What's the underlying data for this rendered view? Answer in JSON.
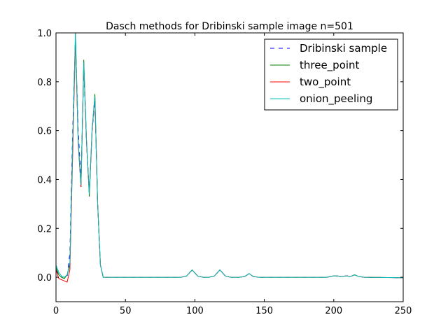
{
  "chart_data": {
    "type": "line",
    "title": "Dasch methods for Dribinski sample image n=501",
    "x": [
      0,
      2,
      4,
      6,
      8,
      10,
      12,
      14,
      16,
      18,
      20,
      22,
      24,
      26,
      28,
      30,
      32,
      34,
      36,
      50,
      90,
      94,
      98,
      102,
      106,
      110,
      114,
      118,
      122,
      126,
      132,
      136,
      139,
      142,
      146,
      150,
      195,
      200,
      203,
      206,
      209,
      212,
      215,
      218,
      222,
      250
    ],
    "series": [
      {
        "name": "Dribinski sample",
        "color": "#0000ff",
        "dash": true,
        "values": [
          0.03,
          0.01,
          0.0,
          -0.005,
          0.0,
          0.1,
          0.6,
          0.98,
          0.6,
          0.4,
          0.85,
          0.55,
          0.35,
          0.6,
          0.72,
          0.3,
          0.05,
          0.0,
          0.0,
          0,
          0,
          0.005,
          0.03,
          0.005,
          0,
          0,
          0.005,
          0.03,
          0.005,
          0,
          0,
          0.003,
          0.015,
          0.003,
          0,
          0,
          0,
          0.006,
          0.005,
          0.003,
          0.006,
          0.003,
          0.01,
          0.003,
          0,
          -0.002
        ]
      },
      {
        "name": "three_point",
        "color": "#008000",
        "dash": false,
        "values": [
          0.04,
          0.01,
          0.0,
          -0.005,
          0.01,
          0.05,
          0.55,
          1.0,
          0.55,
          0.37,
          0.89,
          0.55,
          0.33,
          0.6,
          0.75,
          0.3,
          0.05,
          0.0,
          0.0,
          0,
          0,
          0.005,
          0.03,
          0.005,
          0,
          0,
          0.005,
          0.03,
          0.005,
          0,
          0,
          0.003,
          0.015,
          0.003,
          0,
          0,
          0,
          0.006,
          0.005,
          0.003,
          0.006,
          0.003,
          0.01,
          0.003,
          0,
          -0.002
        ]
      },
      {
        "name": "two_point",
        "color": "#ff0000",
        "dash": false,
        "values": [
          0.03,
          -0.005,
          -0.01,
          -0.015,
          -0.02,
          0.03,
          0.5,
          0.97,
          0.55,
          0.37,
          0.87,
          0.55,
          0.34,
          0.6,
          0.74,
          0.3,
          0.05,
          0.0,
          0.0,
          0,
          0,
          0.005,
          0.03,
          0.005,
          0,
          0,
          0.005,
          0.03,
          0.005,
          0,
          0,
          0.003,
          0.015,
          0.003,
          0,
          0,
          0,
          0.006,
          0.005,
          0.003,
          0.006,
          0.003,
          0.01,
          0.003,
          0,
          -0.002
        ]
      },
      {
        "name": "onion_peeling",
        "color": "#00bfbf",
        "dash": false,
        "values": [
          0.05,
          0.02,
          0.005,
          0.0,
          0.01,
          0.06,
          0.55,
          1.0,
          0.56,
          0.38,
          0.88,
          0.56,
          0.34,
          0.61,
          0.74,
          0.3,
          0.05,
          0.0,
          0.0,
          0,
          0,
          0.005,
          0.03,
          0.005,
          0,
          0,
          0.005,
          0.03,
          0.005,
          0,
          0,
          0.003,
          0.015,
          0.003,
          0,
          0,
          0,
          0.006,
          0.005,
          0.003,
          0.006,
          0.003,
          0.01,
          0.003,
          0,
          -0.002
        ]
      }
    ],
    "xlim": [
      0,
      250
    ],
    "xticks": [
      0,
      50,
      100,
      150,
      200,
      250
    ],
    "ylim": [
      -0.1,
      1.0
    ],
    "yticks": [
      {
        "value": 0.0,
        "label": "0.0"
      },
      {
        "value": 0.2,
        "label": "0.2"
      },
      {
        "value": 0.4,
        "label": "0.4"
      },
      {
        "value": 0.6,
        "label": "0.6"
      },
      {
        "value": 0.8,
        "label": "0.8"
      },
      {
        "value": 1.0,
        "label": "1.0"
      }
    ],
    "legend": "upper right",
    "grid": false
  }
}
